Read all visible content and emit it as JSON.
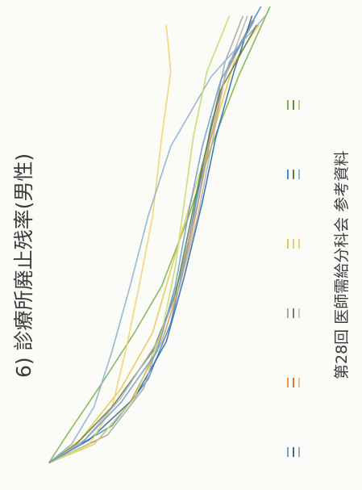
{
  "chart_title": "6) 診療所廃止残率(男性)",
  "footer_caption": "第28回 医師需給分科会 参考資料",
  "chart_data": {
    "type": "line",
    "title": "6) 診療所廃止残率(男性)",
    "xlabel": "",
    "ylabel": "",
    "xlim": [
      0,
      1
    ],
    "ylim": [
      0,
      1
    ],
    "grid": false,
    "legend_position": "right",
    "series": [
      {
        "color": "#7fb24a",
        "values": [
          [
            0.02,
            0.02
          ],
          [
            0.08,
            0.1
          ],
          [
            0.18,
            0.24
          ],
          [
            0.3,
            0.4
          ],
          [
            0.4,
            0.52
          ],
          [
            0.55,
            0.64
          ],
          [
            0.7,
            0.74
          ],
          [
            0.85,
            0.86
          ],
          [
            1.0,
            1.0
          ]
        ]
      },
      {
        "color": "#4a8bc4",
        "values": [
          [
            0.02,
            0.02
          ],
          [
            0.1,
            0.3
          ],
          [
            0.2,
            0.46
          ],
          [
            0.32,
            0.56
          ],
          [
            0.45,
            0.62
          ],
          [
            0.6,
            0.68
          ],
          [
            0.75,
            0.74
          ],
          [
            0.88,
            0.82
          ],
          [
            1.0,
            0.96
          ]
        ]
      },
      {
        "color": "#e8c84a",
        "values": [
          [
            0.02,
            0.02
          ],
          [
            0.07,
            0.16
          ],
          [
            0.18,
            0.34
          ],
          [
            0.3,
            0.48
          ],
          [
            0.45,
            0.57
          ],
          [
            0.6,
            0.66
          ],
          [
            0.75,
            0.76
          ],
          [
            0.88,
            0.84
          ],
          [
            0.96,
            0.95
          ]
        ]
      },
      {
        "color": "#e09a4f",
        "values": [
          [
            0.02,
            0.02
          ],
          [
            0.07,
            0.24
          ],
          [
            0.15,
            0.38
          ],
          [
            0.28,
            0.52
          ],
          [
            0.4,
            0.6
          ],
          [
            0.55,
            0.67
          ],
          [
            0.7,
            0.73
          ],
          [
            0.85,
            0.8
          ],
          [
            0.97,
            0.92
          ]
        ]
      },
      {
        "color": "#2f6fa8",
        "values": [
          [
            0.02,
            0.02
          ],
          [
            0.07,
            0.2
          ],
          [
            0.16,
            0.4
          ],
          [
            0.28,
            0.54
          ],
          [
            0.42,
            0.62
          ],
          [
            0.58,
            0.7
          ],
          [
            0.72,
            0.76
          ],
          [
            0.86,
            0.84
          ],
          [
            0.98,
            0.92
          ]
        ]
      },
      {
        "color": "#a6a6a6",
        "values": [
          [
            0.02,
            0.02
          ],
          [
            0.08,
            0.28
          ],
          [
            0.18,
            0.44
          ],
          [
            0.3,
            0.52
          ],
          [
            0.42,
            0.6
          ],
          [
            0.58,
            0.68
          ],
          [
            0.74,
            0.74
          ],
          [
            0.88,
            0.8
          ],
          [
            0.98,
            0.88
          ]
        ]
      },
      {
        "color": "#f0d36a",
        "values": [
          [
            0.02,
            0.02
          ],
          [
            0.06,
            0.2
          ],
          [
            0.14,
            0.3
          ],
          [
            0.26,
            0.36
          ],
          [
            0.4,
            0.42
          ],
          [
            0.55,
            0.48
          ],
          [
            0.72,
            0.52
          ],
          [
            0.86,
            0.56
          ],
          [
            0.96,
            0.54
          ]
        ]
      },
      {
        "color": "#8fb0d0",
        "values": [
          [
            0.02,
            0.02
          ],
          [
            0.06,
            0.12
          ],
          [
            0.14,
            0.22
          ],
          [
            0.26,
            0.3
          ],
          [
            0.4,
            0.38
          ],
          [
            0.55,
            0.46
          ],
          [
            0.7,
            0.56
          ],
          [
            0.85,
            0.74
          ],
          [
            0.98,
            0.98
          ]
        ]
      },
      {
        "color": "#5f7f3f",
        "values": [
          [
            0.02,
            0.02
          ],
          [
            0.06,
            0.14
          ],
          [
            0.14,
            0.3
          ],
          [
            0.26,
            0.48
          ],
          [
            0.38,
            0.58
          ],
          [
            0.52,
            0.64
          ],
          [
            0.66,
            0.7
          ],
          [
            0.82,
            0.78
          ],
          [
            0.96,
            0.94
          ]
        ]
      },
      {
        "color": "#b6b6b6",
        "values": [
          [
            0.02,
            0.02
          ],
          [
            0.07,
            0.18
          ],
          [
            0.16,
            0.34
          ],
          [
            0.28,
            0.5
          ],
          [
            0.4,
            0.6
          ],
          [
            0.55,
            0.68
          ],
          [
            0.7,
            0.74
          ],
          [
            0.85,
            0.8
          ],
          [
            0.98,
            0.9
          ]
        ]
      },
      {
        "color": "#c7d96c",
        "values": [
          [
            0.02,
            0.02
          ],
          [
            0.06,
            0.22
          ],
          [
            0.16,
            0.4
          ],
          [
            0.3,
            0.52
          ],
          [
            0.44,
            0.58
          ],
          [
            0.58,
            0.62
          ],
          [
            0.72,
            0.66
          ],
          [
            0.86,
            0.72
          ],
          [
            0.98,
            0.82
          ]
        ]
      },
      {
        "color": "#6f9fcf",
        "values": [
          [
            0.02,
            0.02
          ],
          [
            0.06,
            0.16
          ],
          [
            0.15,
            0.34
          ],
          [
            0.26,
            0.5
          ],
          [
            0.4,
            0.58
          ],
          [
            0.56,
            0.64
          ],
          [
            0.7,
            0.7
          ],
          [
            0.84,
            0.78
          ],
          [
            0.97,
            0.93
          ]
        ]
      }
    ]
  },
  "legend_rows": [
    {
      "colors": [
        "#6f9fcf",
        "#2f6fa8",
        "#8fb0d0"
      ]
    },
    {
      "colors": [
        "#e09a4f",
        "#d97a3a",
        "#e8c09a"
      ]
    },
    {
      "colors": [
        "#a6a6a6",
        "#7a7a7a",
        "#c8c8c8"
      ]
    },
    {
      "colors": [
        "#e8c84a",
        "#c7d96c",
        "#f0d36a"
      ]
    },
    {
      "colors": [
        "#4a8bc4",
        "#5f7f3f",
        "#9ab4d0"
      ]
    },
    {
      "colors": [
        "#7fb24a",
        "#5f8f3a",
        "#b5d38a"
      ]
    }
  ]
}
